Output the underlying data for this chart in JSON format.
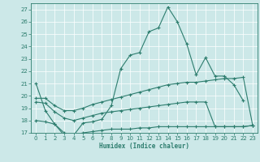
{
  "title": "",
  "xlabel": "Humidex (Indice chaleur)",
  "ylabel": "",
  "bg_color": "#cce8e8",
  "line_color": "#2d7d6e",
  "x_min": 0,
  "x_max": 23,
  "y_min": 17,
  "y_max": 27,
  "series1_x": [
    0,
    1,
    2,
    3,
    4,
    5,
    6,
    7,
    8,
    9,
    10,
    11,
    12,
    13,
    14,
    15,
    16,
    17,
    18,
    19,
    20,
    21,
    22,
    23
  ],
  "series1_y": [
    21.0,
    18.8,
    17.7,
    16.8,
    16.8,
    17.8,
    17.9,
    18.1,
    19.2,
    22.2,
    23.3,
    23.5,
    25.2,
    25.5,
    27.2,
    26.0,
    24.2,
    21.7,
    23.1,
    21.6,
    21.6,
    20.9,
    19.6,
    null
  ],
  "series2_x": [
    0,
    1,
    2,
    3,
    4,
    5,
    6,
    7,
    8,
    9,
    10,
    11,
    12,
    13,
    14,
    15,
    16,
    17,
    18,
    19,
    20,
    21,
    22,
    23
  ],
  "series2_y": [
    19.8,
    19.8,
    19.2,
    18.8,
    18.8,
    19.0,
    19.3,
    19.5,
    19.7,
    19.9,
    20.1,
    20.3,
    20.5,
    20.7,
    20.9,
    21.0,
    21.1,
    21.1,
    21.2,
    21.3,
    21.4,
    21.4,
    21.5,
    17.6
  ],
  "series3_x": [
    0,
    1,
    2,
    3,
    4,
    5,
    6,
    7,
    8,
    9,
    10,
    11,
    12,
    13,
    14,
    15,
    16,
    17,
    18,
    19,
    20,
    21,
    22,
    23
  ],
  "series3_y": [
    19.5,
    19.4,
    18.7,
    18.2,
    18.0,
    18.2,
    18.4,
    18.6,
    18.7,
    18.8,
    18.9,
    19.0,
    19.1,
    19.2,
    19.3,
    19.4,
    19.5,
    19.5,
    19.5,
    17.5,
    17.5,
    17.5,
    17.5,
    17.6
  ],
  "series4_x": [
    0,
    1,
    2,
    3,
    4,
    5,
    6,
    7,
    8,
    9,
    10,
    11,
    12,
    13,
    14,
    15,
    16,
    17,
    18,
    19,
    20,
    21,
    22,
    23
  ],
  "series4_y": [
    18.0,
    17.9,
    17.7,
    17.0,
    16.8,
    17.0,
    17.1,
    17.2,
    17.3,
    17.3,
    17.3,
    17.4,
    17.4,
    17.5,
    17.5,
    17.5,
    17.5,
    17.5,
    17.5,
    17.5,
    17.5,
    17.5,
    17.5,
    17.6
  ]
}
